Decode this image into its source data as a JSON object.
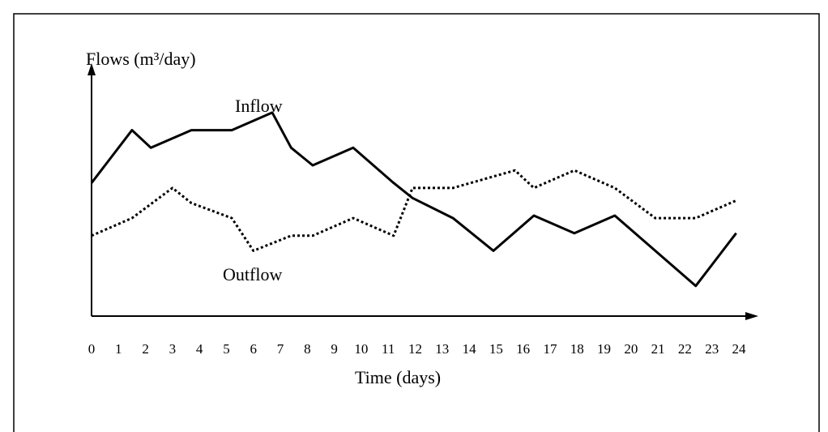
{
  "chart_data": {
    "type": "line",
    "y_label": "Flows  (m³/day)",
    "x_label": "Time   (days)",
    "xlim": [
      0,
      24
    ],
    "xticks": [
      0,
      1,
      2,
      3,
      4,
      5,
      6,
      7,
      8,
      9,
      10,
      11,
      12,
      13,
      14,
      15,
      16,
      17,
      18,
      19,
      20,
      21,
      22,
      23,
      24
    ],
    "ylim": [
      0,
      100
    ],
    "series": [
      {
        "name": "Inflow",
        "color": "#000000",
        "dash": "solid",
        "x": [
          0,
          1.5,
          2.2,
          3.7,
          5.2,
          6.7,
          7.4,
          8.2,
          9.7,
          11.2,
          11.9,
          13.4,
          14.9,
          16.4,
          17.9,
          19.4,
          22.4,
          23.9
        ],
        "values": [
          53,
          74,
          67,
          74,
          74,
          81,
          67,
          60,
          67,
          53,
          47,
          39,
          26,
          40,
          33,
          40,
          12,
          33
        ]
      },
      {
        "name": "Outflow",
        "color": "#000000",
        "dash": "dotted",
        "x": [
          0,
          1.5,
          3.0,
          3.7,
          5.2,
          6.0,
          6.7,
          7.4,
          8.2,
          9.7,
          11.2,
          11.9,
          13.4,
          15.7,
          16.4,
          17.9,
          19.4,
          20.9,
          22.4,
          23.9
        ],
        "values": [
          32,
          39,
          51,
          45,
          39,
          26,
          29,
          32,
          32,
          39,
          32,
          51,
          51,
          58,
          51,
          58,
          51,
          39,
          39,
          46
        ]
      }
    ]
  }
}
